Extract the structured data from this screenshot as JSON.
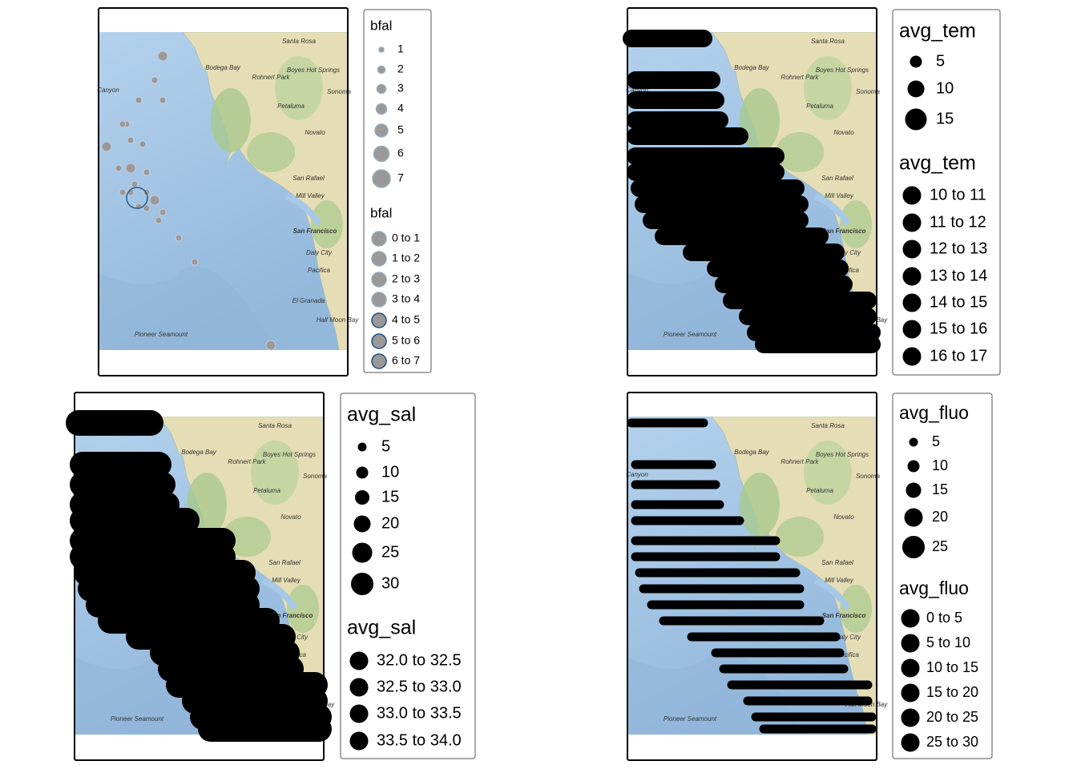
{
  "basemap_labels": [
    "Santa Rosa",
    "Bodega Bay",
    "Rohnert Park",
    "Boyes Hot Springs",
    "Sonoma",
    "Petaluma",
    "Novato",
    "San Rafael",
    "Mill Valley",
    "San Francisco",
    "Daly City",
    "Pacifica",
    "El Granada",
    "Half Moon Bay",
    "Pioneer Seamount",
    "Canyon"
  ],
  "panels": [
    {
      "legend": [
        {
          "title": "bfal",
          "labels": [
            "1",
            "2",
            "3",
            "4",
            "5",
            "6",
            "7"
          ]
        },
        {
          "title": "bfal",
          "labels": [
            "0 to 1",
            "1 to 2",
            "2 to 3",
            "3 to 4",
            "4 to 5",
            "5 to 6",
            "6 to 7"
          ]
        }
      ]
    },
    {
      "legend": [
        {
          "title": "avg_tem",
          "labels": [
            "5",
            "10",
            "15"
          ]
        },
        {
          "title": "avg_tem",
          "labels": [
            "10 to 11",
            "11 to 12",
            "12 to 13",
            "13 to 14",
            "14 to 15",
            "15 to 16",
            "16 to 17"
          ]
        }
      ]
    },
    {
      "legend": [
        {
          "title": "avg_sal",
          "labels": [
            "5",
            "10",
            "15",
            "20",
            "25",
            "30"
          ]
        },
        {
          "title": "avg_sal",
          "labels": [
            "32.0 to 32.5",
            "32.5 to 33.0",
            "33.0 to 33.5",
            "33.5 to 34.0"
          ]
        }
      ]
    },
    {
      "legend": [
        {
          "title": "avg_fluo",
          "labels": [
            "5",
            "10",
            "15",
            "20",
            "25"
          ]
        },
        {
          "title": "avg_fluo",
          "labels": [
            "0 to 5",
            "5 to 10",
            "10 to 15",
            "15 to 20",
            "20 to 25",
            "25 to 30"
          ]
        }
      ]
    }
  ]
}
